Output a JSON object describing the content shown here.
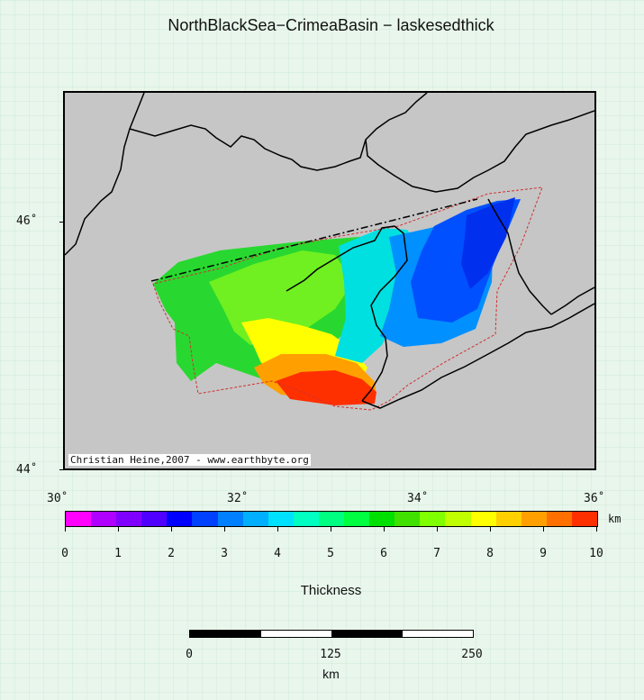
{
  "title": "NorthBlackSea−CrimeaBasin − laskesedthick",
  "credit": "Christian Heine,2007 - www.earthbyte.org",
  "map": {
    "lat_labels": [
      "46˚",
      "44˚"
    ],
    "lon_labels": [
      "30˚",
      "32˚",
      "34˚",
      "36˚"
    ],
    "extent": {
      "lon": [
        30,
        36
      ],
      "lat": [
        44,
        47
      ]
    },
    "colors": {
      "land_sea": "#c6c6c6",
      "coast": "#000000",
      "basin_outline": "#d03030"
    }
  },
  "colorbar": {
    "ticks": [
      "0",
      "1",
      "2",
      "3",
      "4",
      "5",
      "6",
      "7",
      "8",
      "9",
      "10"
    ],
    "unit": "km",
    "label": "Thickness",
    "range": [
      0,
      10
    ],
    "colors": [
      "#ff00ff",
      "#b000ff",
      "#8000ff",
      "#5000ff",
      "#0000ff",
      "#0040ff",
      "#0080ff",
      "#00b0ff",
      "#00e0ff",
      "#00ffc0",
      "#00ff80",
      "#00ff40",
      "#00e000",
      "#40e000",
      "#80ff00",
      "#c0ff00",
      "#ffff00",
      "#ffd000",
      "#ffa000",
      "#ff7000",
      "#ff3000"
    ]
  },
  "scalebar": {
    "labels": [
      "0",
      "125",
      "250"
    ],
    "unit": "km"
  }
}
